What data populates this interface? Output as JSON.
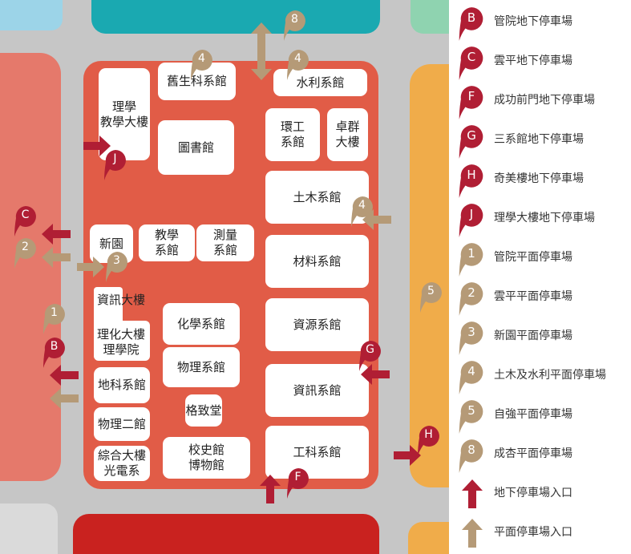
{
  "colors": {
    "campus": "#e15c47",
    "road": "#c6c6c6",
    "underground": "#b01e34",
    "surface": "#b59a77"
  },
  "buildings": {
    "lixue_teaching": "理學\n教學大樓",
    "old_bio": "舊生科系館",
    "water": "水利系館",
    "library": "圖書館",
    "env": "環工\n系館",
    "zhuoqun": "卓群\n大樓",
    "civil": "土木系館",
    "xinyuan": "新園",
    "education": "教學\n系館",
    "survey": "測量\n系館",
    "material": "材料系館",
    "info_bldg": "資訊大樓",
    "chem": "化學系館",
    "resource": "資源系館",
    "lihua": "理化大樓\n理學院",
    "physics": "物理系館",
    "geo": "地科系館",
    "csie": "資訊系館",
    "physics2": "物理二館",
    "gezhi": "格致堂",
    "zonghe": "綜合大樓\n光電系",
    "museum": "校史館\n博物館",
    "engsci": "工科系館"
  },
  "markers": {
    "m8": "8",
    "m4a": "4",
    "m4b": "4",
    "m4c": "4",
    "mC": "C",
    "m2": "2",
    "m3": "3",
    "mJ": "J",
    "m1": "1",
    "mB": "B",
    "mG": "G",
    "m5": "5",
    "mH": "H",
    "mF": "F"
  },
  "legend": [
    {
      "code": "B",
      "type": "underground",
      "label": "管院地下停車場"
    },
    {
      "code": "C",
      "type": "underground",
      "label": "雲平地下停車場"
    },
    {
      "code": "F",
      "type": "underground",
      "label": "成功前門地下停車場"
    },
    {
      "code": "G",
      "type": "underground",
      "label": "三系館地下停車場"
    },
    {
      "code": "H",
      "type": "underground",
      "label": "奇美樓地下停車場"
    },
    {
      "code": "J",
      "type": "underground",
      "label": "理學大樓地下停車場"
    },
    {
      "code": "1",
      "type": "surface",
      "label": "管院平面停車場"
    },
    {
      "code": "2",
      "type": "surface",
      "label": "雲平平面停車場"
    },
    {
      "code": "3",
      "type": "surface",
      "label": "新園平面停車場"
    },
    {
      "code": "4",
      "type": "surface",
      "label": "土木及水利平面停車場"
    },
    {
      "code": "5",
      "type": "surface",
      "label": "自強平面停車場"
    },
    {
      "code": "8",
      "type": "surface",
      "label": "成杏平面停車場"
    }
  ],
  "legend_arrows": {
    "underground": "地下停車場入口",
    "surface": "平面停車場入口"
  }
}
